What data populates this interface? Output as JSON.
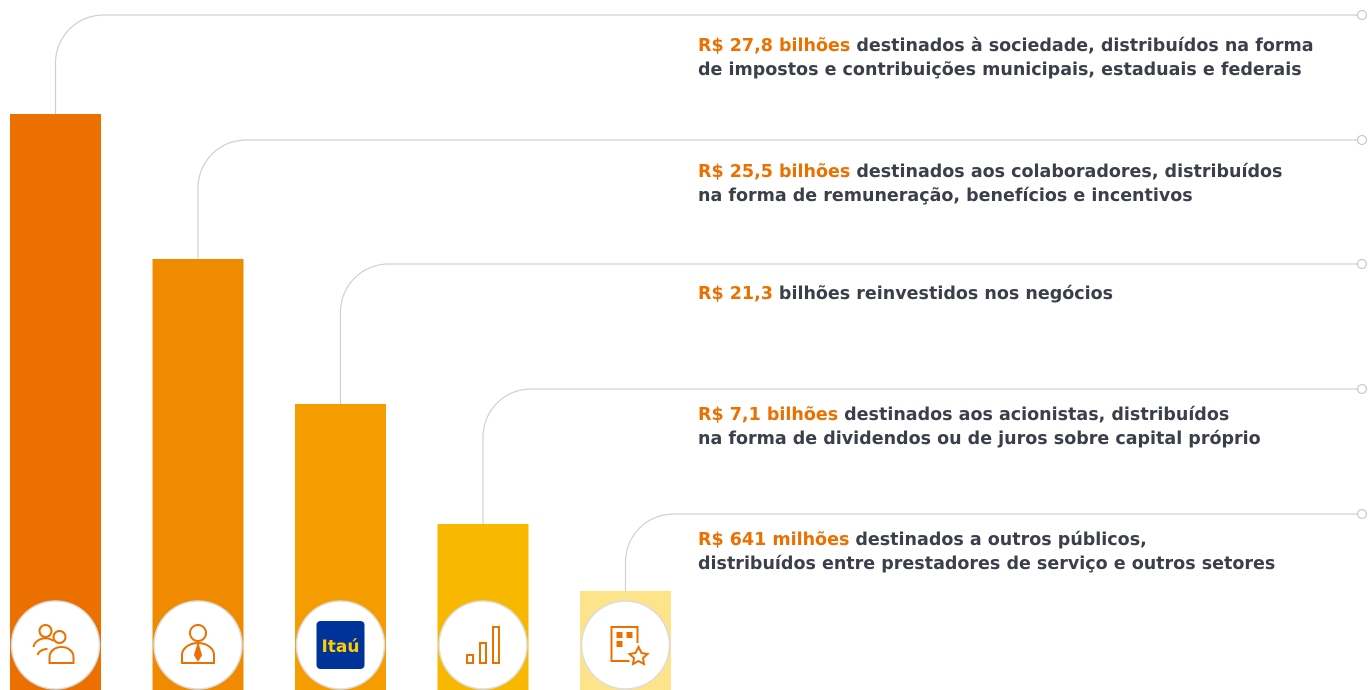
{
  "items": [
    {
      "highlight": "R$ 27,8 bilhões",
      "line1": "destinados à sociedade, distribuídos na forma",
      "line2": "de impostos e contribuições municipais, estaduais e federais"
    },
    {
      "highlight": "R$ 25,5 bilhões",
      "line1": "destinados aos colaboradores, distribuídos",
      "line2": "na forma de remuneração, benefícios e incentivos"
    },
    {
      "highlight": "R$ 21,3",
      "line1": "bilhões reinvestidos nos negócios"
    },
    {
      "highlight": "R$ 7,1 bilhões",
      "line1": "destinados aos acionistas, distribuídos",
      "line2": "na forma de dividendos ou de juros sobre capital próprio"
    },
    {
      "highlight": "R$ 641 milhões",
      "line1": "destinados a outros públicos,",
      "line2": "distribuídos entre prestadores de serviço e outros setores"
    }
  ],
  "logo": "Itaú"
}
